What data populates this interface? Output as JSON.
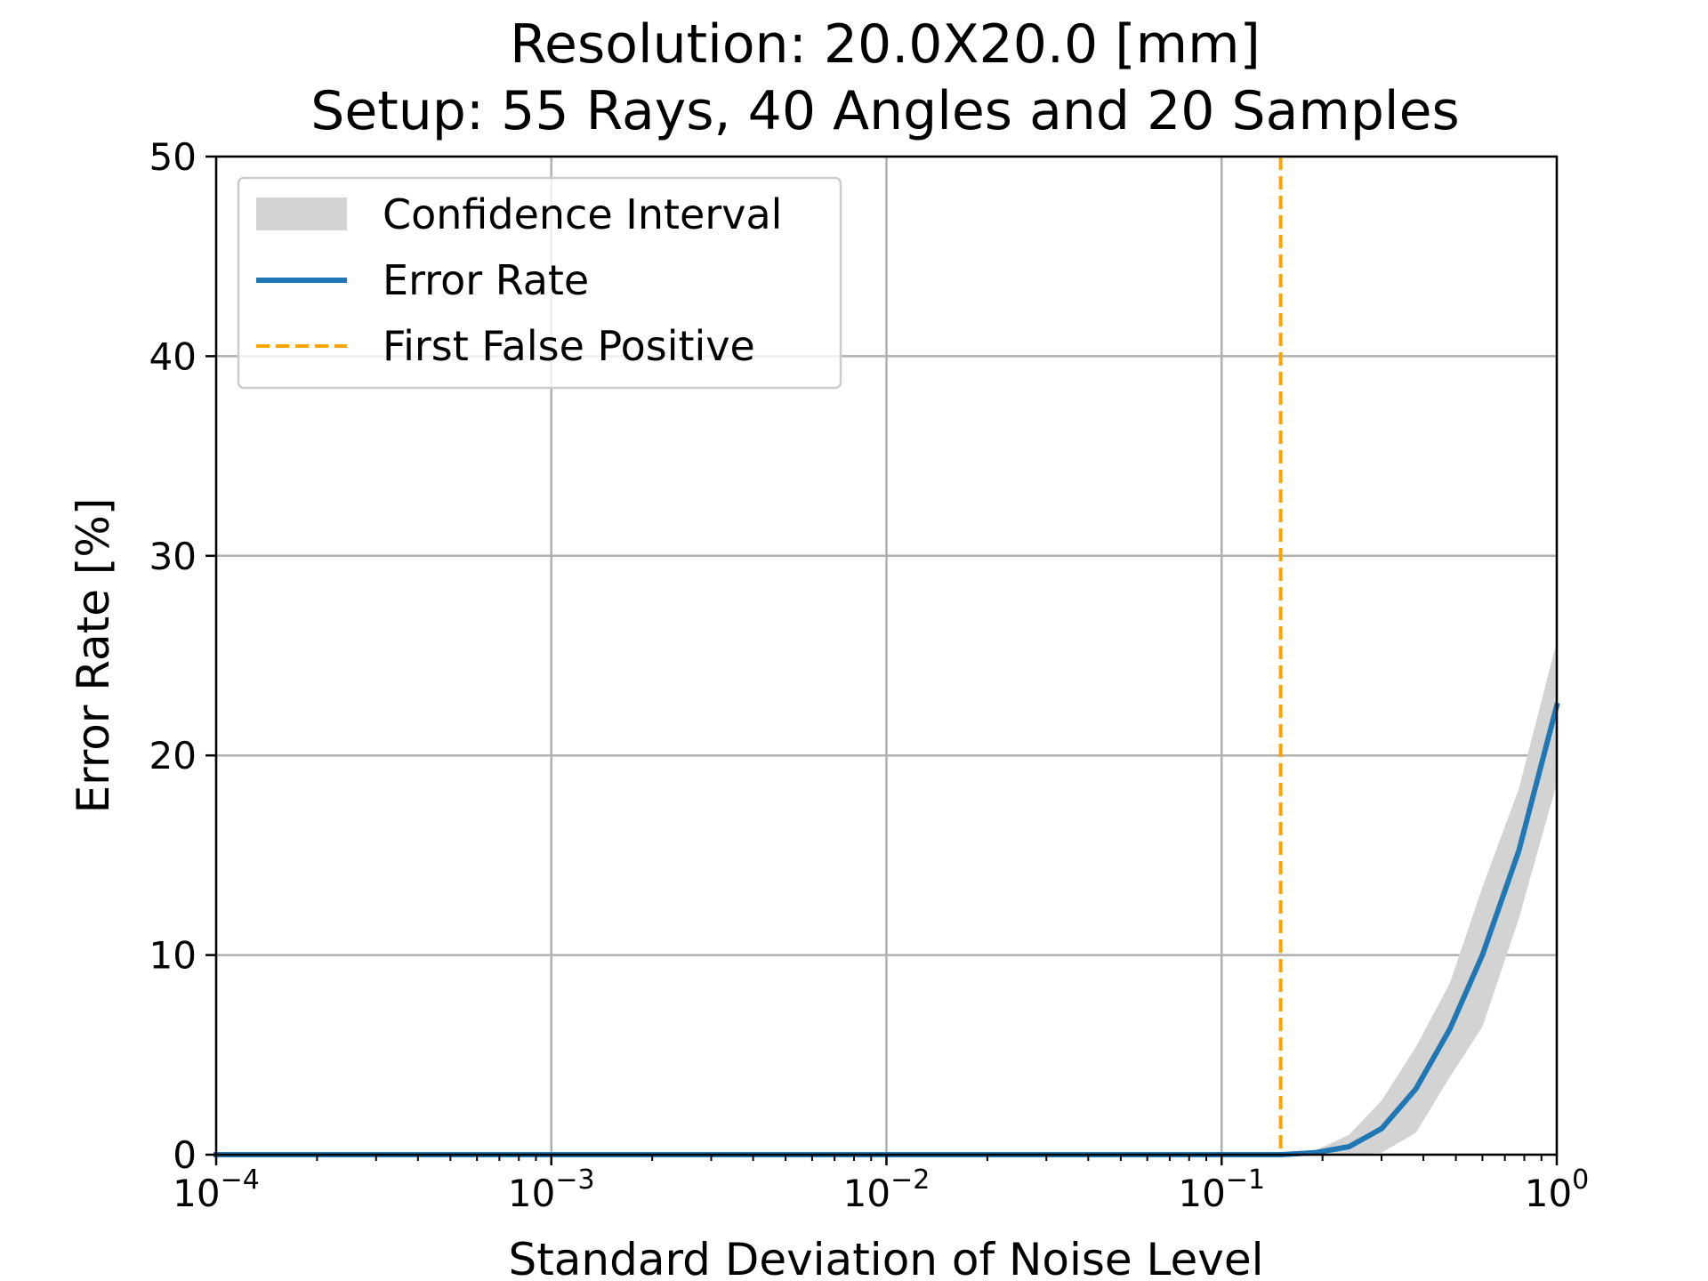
{
  "chart_data": {
    "type": "line",
    "title_lines": [
      "Resolution: 20.0X20.0 [mm]",
      "Setup: 55 Rays, 40 Angles and 20 Samples"
    ],
    "xlabel": "Standard Deviation of Noise Level",
    "ylabel": "Error Rate [%]",
    "x_scale": "log",
    "xlim": [
      0.0001,
      1
    ],
    "ylim": [
      0,
      50
    ],
    "x_ticks": [
      {
        "value": 0.0001,
        "base": "10",
        "exp": "−4"
      },
      {
        "value": 0.001,
        "base": "10",
        "exp": "−3"
      },
      {
        "value": 0.01,
        "base": "10",
        "exp": "−2"
      },
      {
        "value": 0.1,
        "base": "10",
        "exp": "−1"
      },
      {
        "value": 1,
        "base": "10",
        "exp": "0"
      }
    ],
    "y_ticks": [
      {
        "value": 0,
        "label": "0"
      },
      {
        "value": 10,
        "label": "10"
      },
      {
        "value": 20,
        "label": "20"
      },
      {
        "value": 30,
        "label": "30"
      },
      {
        "value": 40,
        "label": "40"
      },
      {
        "value": 50,
        "label": "50"
      }
    ],
    "grid": true,
    "legend_position": "upper-left",
    "legend": [
      {
        "label": "Confidence Interval",
        "kind": "band"
      },
      {
        "label": "Error Rate",
        "kind": "line"
      },
      {
        "label": "First False Positive",
        "kind": "dashed"
      }
    ],
    "colors": {
      "error_rate": "#1f77b4",
      "confidence_band": "#d3d3d3",
      "first_false_positive": "#ffa500",
      "grid": "#b0b0b0"
    },
    "series": [
      {
        "name": "Error Rate",
        "x": [
          0.0001,
          0.001,
          0.01,
          0.1,
          0.15,
          0.19,
          0.24,
          0.3,
          0.38,
          0.48,
          0.6,
          0.77,
          1.0
        ],
        "y": [
          0,
          0,
          0,
          0,
          0,
          0.1,
          0.4,
          1.3,
          3.3,
          6.3,
          10.0,
          15.2,
          22.5
        ]
      }
    ],
    "confidence_interval": {
      "name": "Confidence Interval",
      "x": [
        0.0001,
        0.001,
        0.01,
        0.1,
        0.15,
        0.19,
        0.24,
        0.3,
        0.38,
        0.48,
        0.6,
        0.77,
        1.0
      ],
      "lower": [
        0,
        0,
        0,
        0,
        0,
        0,
        0,
        0.1,
        1.1,
        3.9,
        6.4,
        11.8,
        18.6
      ],
      "upper": [
        0,
        0,
        0,
        0,
        0,
        0.2,
        1.0,
        2.7,
        5.4,
        8.6,
        13.4,
        18.3,
        25.7
      ]
    },
    "vertical_line": {
      "name": "First False Positive",
      "x": 0.15
    }
  }
}
